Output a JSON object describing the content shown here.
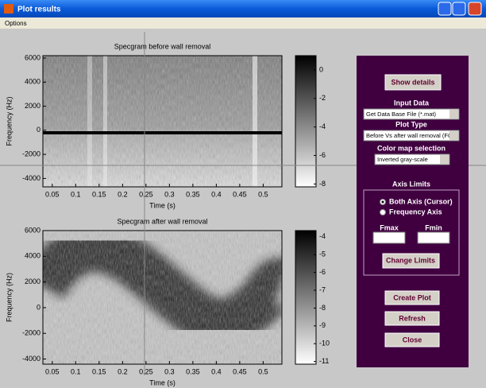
{
  "window": {
    "title": "Plot results",
    "menu": [
      "Options"
    ]
  },
  "plots": [
    {
      "title": "Specgram before wall removal",
      "xlabel": "Time (s)",
      "ylabel": "Frequency (Hz)",
      "xlim": [
        0.03,
        0.54
      ],
      "xticks": [
        0.05,
        0.1,
        0.15,
        0.2,
        0.25,
        0.3,
        0.35,
        0.4,
        0.45,
        0.5
      ],
      "ylim": [
        -4700,
        6200
      ],
      "yticks": [
        6000,
        4000,
        2000,
        0,
        -2000,
        -4000
      ],
      "clim": [
        -8.2,
        1
      ],
      "colorbar_ticks": [
        0,
        -2,
        -4,
        -6,
        -8
      ]
    },
    {
      "title": "Specgram after wall removal",
      "xlabel": "Time (s)",
      "ylabel": "Frequency (Hz)",
      "xlim": [
        0.03,
        0.54
      ],
      "xticks": [
        0.05,
        0.1,
        0.15,
        0.2,
        0.25,
        0.3,
        0.35,
        0.4,
        0.45,
        0.5
      ],
      "ylim": [
        -4400,
        6000
      ],
      "yticks": [
        6000,
        4000,
        2000,
        0,
        -2000,
        -4000
      ],
      "clim": [
        -11.15,
        -3.65
      ],
      "colorbar_ticks": [
        -4,
        -5,
        -6,
        -7,
        -8,
        -9,
        -10,
        -11
      ]
    }
  ],
  "panel": {
    "show_details": "Show details",
    "input_data_label": "Input Data",
    "input_data_value": "Get Data Base File (*.mat)",
    "plot_type_label": "Plot Type",
    "plot_type_value": "Before Vs after wall removal (FC",
    "colormap_label": "Color map selection",
    "colormap_value": "Inverted gray-scale",
    "axis_limits_label": "Axis Limits",
    "radio": [
      "Both Axis (Cursor)",
      "Frequency Axis"
    ],
    "fmax": "Fmax",
    "fmin": "Fmin",
    "change_limits": "Change Limits",
    "create_plot": "Create Plot",
    "refresh": "Refresh",
    "close": "Close"
  }
}
